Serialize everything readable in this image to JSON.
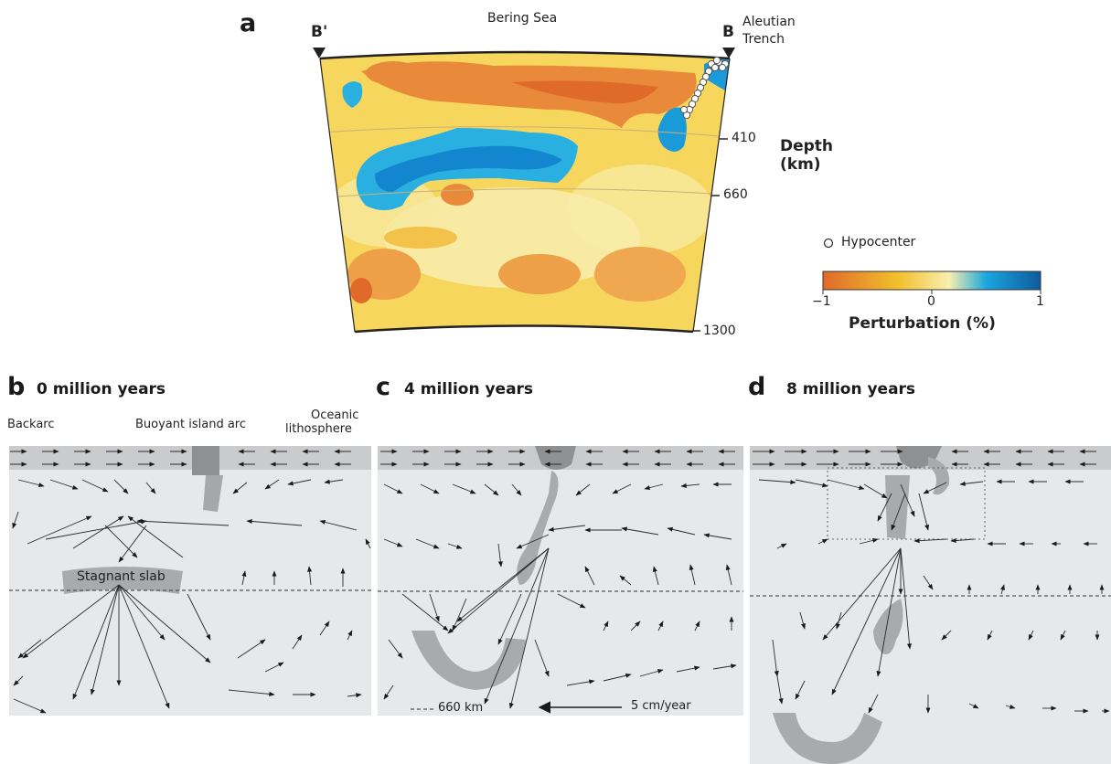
{
  "panel_a": {
    "letter": "a",
    "top_label": "Bering Sea",
    "left_marker": "B'",
    "right_marker": "B",
    "trench_label_1": "Aleutian",
    "trench_label_2": "Trench",
    "depth_ticks": [
      "410",
      "660",
      "1300"
    ],
    "depth_title_1": "Depth",
    "depth_title_2": "(km)",
    "legend_hypocenter": "Hypocenter",
    "colorbar_ticks": [
      "−1",
      "0",
      "1"
    ],
    "colorbar_title": "Perturbation (%)",
    "colorbar_colors": [
      "#e06a2a",
      "#f2c12e",
      "#f9efb0",
      "#1aa7dd",
      "#0e5a9e"
    ]
  },
  "panel_b": {
    "letter": "b",
    "title": "0 million years",
    "label_backarc": "Backarc",
    "label_arc": "Buoyant island arc",
    "label_oceanic_1": "Oceanic",
    "label_oceanic_2": "lithosphere",
    "label_slab": "Stagnant slab"
  },
  "panel_c": {
    "letter": "c",
    "title": "4 million years"
  },
  "panel_d": {
    "letter": "d",
    "title": "8 million years"
  },
  "legend_bottom": {
    "line_label": "660 km",
    "arrow_label": "5 cm/year"
  }
}
